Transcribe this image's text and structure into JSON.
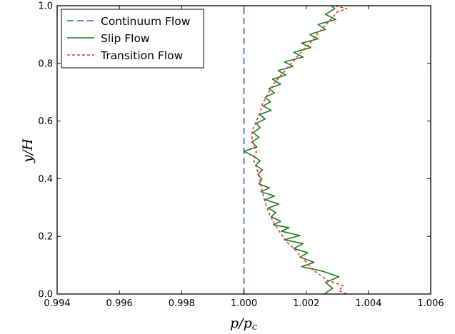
{
  "chart_data": {
    "type": "line",
    "title": "",
    "xlabel": "p/p",
    "xlabel_sub": "c",
    "ylabel": "y/H",
    "xlim": [
      0.994,
      1.006
    ],
    "ylim": [
      0.0,
      1.0
    ],
    "x_ticks": [
      "0.994",
      "0.996",
      "0.998",
      "1.000",
      "1.002",
      "1.004",
      "1.006"
    ],
    "y_ticks": [
      "0.0",
      "0.2",
      "0.4",
      "0.6",
      "0.8",
      "1.0"
    ],
    "legend_position": "top-left",
    "grid": false,
    "series": [
      {
        "name": "Continuum Flow",
        "color": "#2f5fb3",
        "dash": "long-dash",
        "points": [
          [
            1.0,
            0.0
          ],
          [
            1.0,
            1.0
          ]
        ]
      },
      {
        "name": "Slip Flow",
        "color": "#1f7a1f",
        "dash": "solid",
        "points": [
          [
            1.00258,
            0.0
          ],
          [
            1.00285,
            0.02
          ],
          [
            1.00262,
            0.04
          ],
          [
            1.00305,
            0.06
          ],
          [
            1.0025,
            0.08
          ],
          [
            1.00185,
            0.095
          ],
          [
            1.00225,
            0.11
          ],
          [
            1.0018,
            0.128
          ],
          [
            1.00205,
            0.143
          ],
          [
            1.0016,
            0.158
          ],
          [
            1.0019,
            0.175
          ],
          [
            1.0013,
            0.188
          ],
          [
            1.0018,
            0.203
          ],
          [
            1.0012,
            0.218
          ],
          [
            1.00145,
            0.23
          ],
          [
            1.00095,
            0.24
          ],
          [
            1.00118,
            0.252
          ],
          [
            1.00088,
            0.268
          ],
          [
            1.00102,
            0.283
          ],
          [
            1.00078,
            0.298
          ],
          [
            1.00112,
            0.312
          ],
          [
            1.00068,
            0.327
          ],
          [
            1.00098,
            0.34
          ],
          [
            1.00055,
            0.355
          ],
          [
            1.00082,
            0.368
          ],
          [
            1.00048,
            0.382
          ],
          [
            1.00058,
            0.398
          ],
          [
            1.00045,
            0.415
          ],
          [
            1.0006,
            0.43
          ],
          [
            1.00038,
            0.447
          ],
          [
            1.00052,
            0.462
          ],
          [
            1.00028,
            0.48
          ],
          [
            1.0,
            0.495
          ],
          [
            1.00042,
            0.51
          ],
          [
            1.00025,
            0.527
          ],
          [
            1.00048,
            0.543
          ],
          [
            1.0003,
            0.56
          ],
          [
            1.00052,
            0.577
          ],
          [
            1.0004,
            0.592
          ],
          [
            1.00068,
            0.607
          ],
          [
            1.0005,
            0.623
          ],
          [
            1.00088,
            0.637
          ],
          [
            1.00062,
            0.652
          ],
          [
            1.00085,
            0.667
          ],
          [
            1.00068,
            0.682
          ],
          [
            1.00098,
            0.698
          ],
          [
            1.0008,
            0.713
          ],
          [
            1.00118,
            0.728
          ],
          [
            1.00092,
            0.745
          ],
          [
            1.00135,
            0.76
          ],
          [
            1.0011,
            0.775
          ],
          [
            1.00158,
            0.79
          ],
          [
            1.0013,
            0.805
          ],
          [
            1.0019,
            0.822
          ],
          [
            1.0016,
            0.838
          ],
          [
            1.00215,
            0.855
          ],
          [
            1.00185,
            0.87
          ],
          [
            1.00238,
            0.885
          ],
          [
            1.00212,
            0.9
          ],
          [
            1.00262,
            0.918
          ],
          [
            1.00238,
            0.935
          ],
          [
            1.00295,
            0.952
          ],
          [
            1.00262,
            0.97
          ],
          [
            1.00292,
            0.99
          ],
          [
            1.0028,
            1.0
          ]
        ]
      },
      {
        "name": "Transition Flow",
        "color": "#e03c31",
        "dash": "short-dash",
        "points": [
          [
            1.0033,
            0.0
          ],
          [
            1.00305,
            0.012
          ],
          [
            1.0032,
            0.028
          ],
          [
            1.00268,
            0.048
          ],
          [
            1.00245,
            0.065
          ],
          [
            1.0022,
            0.085
          ],
          [
            1.00205,
            0.105
          ],
          [
            1.00182,
            0.13
          ],
          [
            1.00168,
            0.15
          ],
          [
            1.00145,
            0.172
          ],
          [
            1.00128,
            0.195
          ],
          [
            1.00112,
            0.22
          ],
          [
            1.00098,
            0.245
          ],
          [
            1.00085,
            0.27
          ],
          [
            1.00075,
            0.295
          ],
          [
            1.00068,
            0.32
          ],
          [
            1.0006,
            0.35
          ],
          [
            1.00055,
            0.38
          ],
          [
            1.00048,
            0.41
          ],
          [
            1.0004,
            0.44
          ],
          [
            1.0003,
            0.465
          ],
          [
            1.0004,
            0.492
          ],
          [
            1.0003,
            0.52
          ],
          [
            1.00025,
            0.55
          ],
          [
            1.0003,
            0.575
          ],
          [
            1.0004,
            0.6
          ],
          [
            1.00052,
            0.63
          ],
          [
            1.0006,
            0.66
          ],
          [
            1.00075,
            0.69
          ],
          [
            1.0009,
            0.72
          ],
          [
            1.00108,
            0.745
          ],
          [
            1.00128,
            0.77
          ],
          [
            1.00148,
            0.795
          ],
          [
            1.00168,
            0.82
          ],
          [
            1.0019,
            0.845
          ],
          [
            1.00212,
            0.87
          ],
          [
            1.0023,
            0.895
          ],
          [
            1.0025,
            0.918
          ],
          [
            1.00268,
            0.94
          ],
          [
            1.00285,
            0.96
          ],
          [
            1.003,
            0.978
          ],
          [
            1.0033,
            0.99
          ],
          [
            1.0029,
            1.0
          ]
        ]
      }
    ]
  }
}
